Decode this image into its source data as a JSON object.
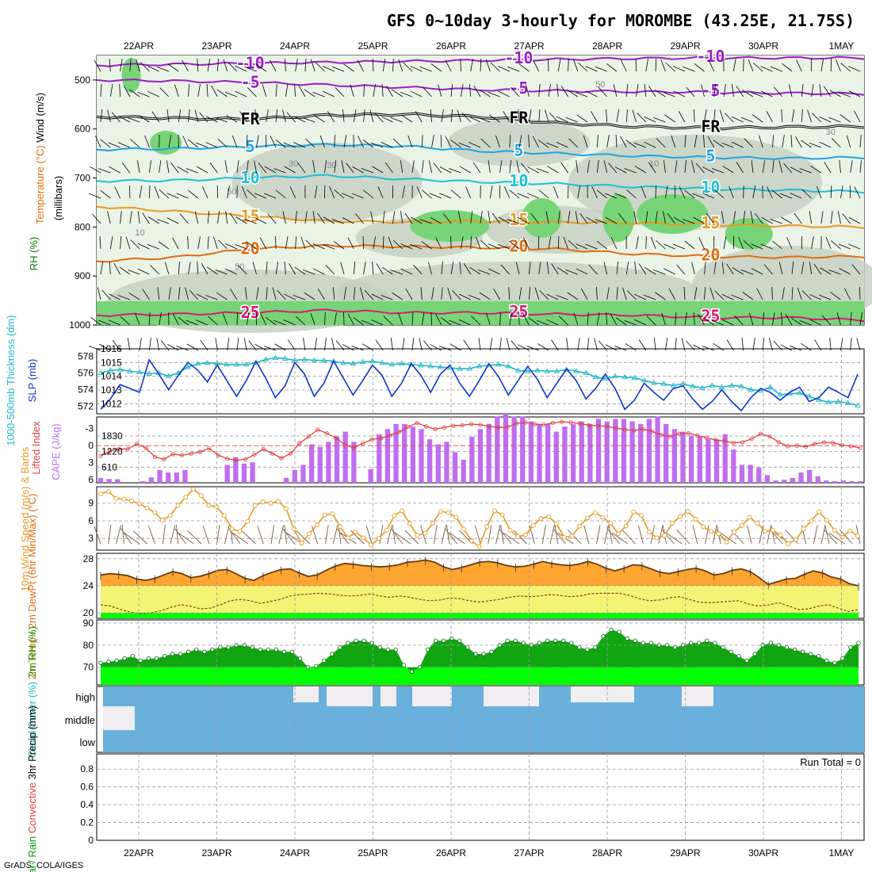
{
  "title": "GFS 0~10day 3-hourly for MOROMBE (43.25E, 21.75S)",
  "credit": "GrADS: COLA/IGES",
  "colors": {
    "rh_light": "#e9f3e6",
    "rh_mid": "#c4cec2",
    "rh_green": "#77d477",
    "temp_purple": "#9b1fc4",
    "temp_blue": "#22a3e0",
    "temp_teal": "#1fbfd0",
    "temp_orange": "#e89a24",
    "temp_dorange": "#e06c10",
    "temp_magenta": "#d81a7a",
    "slp": "#1133cc",
    "thick": "#20b8c8",
    "cape": "#c06ef0",
    "li": "#e04040",
    "wind": "#e89a24",
    "barb": "#7a5a3a",
    "temp2m": "#ffa531",
    "dew2m": "#f4f474",
    "rh2m_dark": "#11a611",
    "rh2m_light": "#00ff00",
    "cloud": "#6ab0dc",
    "cloud_clear": "#f0eef0"
  },
  "chart_data": [
    {
      "panel": "upper-air",
      "type": "heatmap",
      "title": "Temperature (°C)/Wind (m/s)",
      "ylabel_parts": [
        "RH (%)",
        "Temperature (°C)",
        "Wind (m/s)",
        "(millibars)"
      ],
      "x": [
        "22APR",
        "23APR",
        "24APR",
        "25APR",
        "26APR",
        "27APR",
        "28APR",
        "29APR",
        "30APR",
        "1MAY"
      ],
      "y_ticks": [
        500,
        600,
        700,
        800,
        900,
        1000
      ],
      "ylim": [
        1000,
        450
      ],
      "rh_labels": [
        "30",
        "50",
        "10"
      ],
      "isotherms": [
        {
          "label": "-10",
          "pressure": [
            470,
            468,
            466,
            464,
            462,
            460,
            458,
            456,
            455,
            455,
            455
          ]
        },
        {
          "label": "-5",
          "pressure": [
            500,
            502,
            505,
            510,
            515,
            520,
            522,
            524,
            525,
            527,
            528
          ]
        },
        {
          "label": "FR",
          "pressure": [
            575,
            578,
            580,
            572,
            570,
            575,
            588,
            595,
            598,
            596,
            595
          ]
        },
        {
          "label": "5",
          "pressure": [
            642,
            640,
            636,
            632,
            635,
            645,
            650,
            655,
            658,
            660,
            658
          ]
        },
        {
          "label": "10",
          "pressure": [
            706,
            705,
            700,
            695,
            702,
            708,
            712,
            718,
            722,
            725,
            728
          ]
        },
        {
          "label": "15",
          "pressure": [
            758,
            768,
            778,
            788,
            790,
            788,
            790,
            792,
            795,
            798,
            800
          ]
        },
        {
          "label": "20",
          "pressure": [
            870,
            862,
            845,
            838,
            840,
            842,
            845,
            855,
            860,
            862,
            860
          ]
        },
        {
          "label": "25",
          "pressure": [
            980,
            978,
            975,
            970,
            975,
            975,
            978,
            980,
            985,
            985,
            990
          ]
        }
      ]
    },
    {
      "panel": "slp-thickness",
      "type": "line",
      "ylabel_left": "1000-500mb Thickness (dm)",
      "ylabel_right": "SLP (mb)",
      "thickness_ticks": [
        572,
        574,
        576,
        578
      ],
      "slp_ticks": [
        1012,
        1013,
        1014,
        1015,
        1016
      ],
      "series": [
        {
          "name": "SLP (mb)",
          "values": [
            1011.6,
            1012.4,
            1013.5,
            1013.2,
            1012.9,
            1015.4,
            1014.3,
            1013.1,
            1014.2,
            1015.2,
            1014.6,
            1013.7,
            1015.0,
            1013.8,
            1012.6,
            1013.8,
            1015.3,
            1014.0,
            1012.5,
            1013.4,
            1015.2,
            1014.3,
            1012.6,
            1013.6,
            1015.3,
            1014.0,
            1012.7,
            1013.8,
            1015.0,
            1014.2,
            1012.6,
            1013.6,
            1015.1,
            1014.2,
            1012.9,
            1014.3,
            1015.0,
            1013.6,
            1012.6,
            1013.8,
            1015.1,
            1014.1,
            1012.7,
            1013.8,
            1014.9,
            1013.9,
            1012.5,
            1013.6,
            1014.7,
            1013.8,
            1012.4,
            1013.2,
            1014.3,
            1013.2,
            1011.6,
            1012.3,
            1013.6,
            1012.9,
            1012.3,
            1013.2,
            1013.4,
            1012.4,
            1011.6,
            1012.2,
            1013.1,
            1012.2,
            1011.5,
            1012.5,
            1013.2,
            1012.9,
            1012.3,
            1012.9,
            1013.3,
            1012.2,
            1012.5,
            1013.3,
            1012.9,
            1012.5,
            1014.3
          ]
        },
        {
          "name": "1000-500mb Thickness (dm)",
          "values": [
            576.0,
            576.3,
            576.4,
            576.2,
            576.1,
            575.9,
            576.0,
            575.6,
            576.0,
            576.7,
            577.1,
            577.2,
            577.1,
            577.0,
            577.0,
            577.0,
            577.2,
            577.6,
            577.8,
            577.7,
            577.5,
            577.6,
            577.5,
            577.5,
            577.4,
            577.2,
            577.1,
            577.3,
            577.4,
            577.2,
            577.0,
            577.1,
            577.0,
            576.9,
            576.8,
            576.7,
            576.6,
            576.5,
            576.5,
            576.8,
            576.9,
            577.0,
            576.8,
            576.3,
            576.2,
            576.3,
            576.2,
            576.2,
            576.4,
            576.2,
            576.0,
            575.5,
            575.3,
            575.6,
            575.5,
            575.4,
            575.1,
            574.8,
            574.7,
            574.5,
            574.7,
            574.4,
            574.2,
            574.5,
            574.3,
            574.5,
            574.4,
            574.0,
            573.9,
            574.3,
            573.4,
            573.5,
            573.6,
            573.2,
            572.8,
            572.5,
            572.6,
            572.4,
            572.1
          ]
        }
      ]
    },
    {
      "panel": "cape-li",
      "type": "bar",
      "ylabel_left": "Lifted Index",
      "ylabel_right": "CAPE (J/kg)",
      "li_ticks": [
        -3,
        0,
        3,
        6
      ],
      "cape_ticks": [
        610,
        1220,
        1830
      ],
      "series": [
        {
          "name": "CAPE (J/kg)",
          "values": [
            190,
            150,
            140,
            0,
            0,
            60,
            210,
            500,
            400,
            400,
            500,
            0,
            0,
            0,
            0,
            700,
            1000,
            750,
            800,
            0,
            0,
            0,
            190,
            500,
            700,
            1500,
            1400,
            1600,
            1800,
            2000,
            1600,
            0,
            540,
            1900,
            2100,
            2300,
            2300,
            2200,
            2100,
            1700,
            1500,
            1600,
            1200,
            900,
            1800,
            2100,
            2300,
            2600,
            2700,
            2600,
            2600,
            2400,
            2300,
            2300,
            2000,
            2200,
            2300,
            2400,
            2300,
            2500,
            2400,
            2500,
            2500,
            2400,
            2300,
            2500,
            2600,
            2300,
            2100,
            2000,
            1850,
            1800,
            1700,
            1700,
            1900,
            1300,
            700,
            700,
            600,
            300,
            90,
            120,
            190,
            400,
            500,
            250,
            90,
            60,
            90,
            60,
            60
          ]
        },
        {
          "name": "Lifted Index",
          "values": [
            1.8,
            1.0,
            0.6,
            0.6,
            -0.3,
            0.4,
            2.0,
            2.4,
            1.5,
            1.7,
            1.4,
            1.1,
            0.5,
            1.7,
            2.3,
            2.6,
            2.4,
            1.6,
            0.6,
            1.4,
            2.2,
            1.4,
            -0.4,
            -1.6,
            -2.8,
            -2.2,
            -1.4,
            -0.2,
            0.4,
            -0.4,
            -1.1,
            -1.3,
            -1.8,
            -2.4,
            -3.3,
            -4.0,
            -3.4,
            -2.9,
            -3.2,
            -3.5,
            -3.6,
            -3.8,
            -3.7,
            -3.4,
            -3.2,
            -3.3,
            -3.9,
            -4.1,
            -3.8,
            -3.7,
            -4.0,
            -4.2,
            -4.1,
            -3.9,
            -3.6,
            -3.5,
            -3.4,
            -3.1,
            -2.8,
            -2.7,
            -2.9,
            -2.5,
            -1.9,
            -1.6,
            -2.1,
            -2.2,
            -1.8,
            -1.4,
            -1.0,
            -0.8,
            -0.5,
            -0.6,
            -1.2,
            -2.1,
            -1.6,
            -0.6,
            0.1,
            0.0,
            0.2,
            -0.3,
            -0.6,
            -0.5,
            -0.1,
            0.1,
            0.4
          ]
        }
      ]
    },
    {
      "panel": "wind10m",
      "type": "line",
      "ylabel": "10m Wind Speed (m/s) & Barbs",
      "yticks": [
        3,
        6,
        9
      ],
      "series": [
        {
          "name": "10m Wind Speed (m/s)",
          "values": [
            10.6,
            11.0,
            9.8,
            9.7,
            9.4,
            8.9,
            8.2,
            7.4,
            6.1,
            6.9,
            8.6,
            10.0,
            11.4,
            10.3,
            8.6,
            8.4,
            6.9,
            4.6,
            4.2,
            5.9,
            8.6,
            9.2,
            9.0,
            9.3,
            8.1,
            4.6,
            2.2,
            3.8,
            5.3,
            7.0,
            7.2,
            5.0,
            3.1,
            4.1,
            3.1,
            1.9,
            3.0,
            4.4,
            6.9,
            7.7,
            5.5,
            3.5,
            3.9,
            5.6,
            7.6,
            7.4,
            6.6,
            4.6,
            2.6,
            1.6,
            5.0,
            7.7,
            7.0,
            4.4,
            3.3,
            3.6,
            5.2,
            6.4,
            6.7,
            5.5,
            3.2,
            3.4,
            5.1,
            6.5,
            7.4,
            6.6,
            5.6,
            3.8,
            5.1,
            7.5,
            6.9,
            4.1,
            3.1,
            3.5,
            5.6,
            6.7,
            7.6,
            6.3,
            5.0,
            4.2,
            3.8,
            2.4,
            4.1,
            5.2,
            6.6,
            5.6,
            4.2,
            4.4,
            3.6,
            2.1,
            2.8,
            4.6,
            6.0,
            7.5,
            6.1,
            4.4,
            3.2,
            4.3,
            3.4
          ]
        }
      ]
    },
    {
      "panel": "temp2m",
      "type": "area",
      "ylabel": "2m Temp / 2m DewPt (6hr Min/Max) (°C)",
      "yticks": [
        20,
        24,
        28
      ],
      "series": [
        {
          "name": "2m Temp (°C)",
          "values": [
            25.6,
            25.8,
            25.7,
            25.5,
            25.0,
            24.8,
            25.1,
            25.6,
            26.1,
            25.8,
            25.2,
            25.4,
            25.8,
            26.3,
            26.4,
            25.8,
            25.1,
            24.8,
            25.5,
            26.0,
            26.4,
            26.5,
            25.9,
            25.4,
            25.6,
            26.3,
            26.9,
            27.3,
            27.2,
            27.0,
            26.9,
            26.8,
            26.9,
            27.1,
            27.5,
            27.6,
            27.8,
            27.5,
            26.8,
            26.4,
            26.7,
            27.1,
            27.5,
            27.6,
            27.4,
            27.0,
            26.8,
            26.9,
            27.2,
            27.6,
            27.3,
            27.1,
            27.0,
            27.2,
            27.6,
            27.2,
            26.6,
            26.2,
            26.6,
            27.1,
            27.0,
            26.5,
            26.0,
            25.8,
            26.1,
            26.4,
            26.6,
            26.2,
            25.6,
            25.8,
            26.3,
            26.5,
            26.1,
            25.2,
            24.2,
            24.6,
            25.0,
            25.1,
            25.7,
            26.2,
            25.9,
            25.3,
            25.0,
            24.3,
            24.0
          ]
        },
        {
          "name": "2m DewPt (°C)",
          "values": [
            21.2,
            21.0,
            20.5,
            20.1,
            19.9,
            20.0,
            20.3,
            20.8,
            21.2,
            21.0,
            20.6,
            20.7,
            21.2,
            21.8,
            22.0,
            21.8,
            21.4,
            21.7,
            22.0,
            22.5,
            22.7,
            22.8,
            22.9,
            22.8,
            22.6,
            22.5,
            22.6,
            22.8,
            22.5,
            22.3,
            22.5,
            22.3,
            22.0,
            21.8,
            21.9,
            22.2,
            22.1,
            21.8,
            21.6,
            21.8,
            22.0,
            22.3,
            22.5,
            22.4,
            22.5,
            22.7,
            22.6,
            22.4,
            22.5,
            22.8,
            22.9,
            22.9,
            22.9,
            22.6,
            22.1,
            21.8,
            21.9,
            22.2,
            22.4,
            22.0,
            21.6,
            21.5,
            21.6,
            21.7,
            21.8,
            21.3,
            21.0,
            21.2,
            21.5,
            21.0,
            20.5,
            20.6,
            21.0,
            21.2,
            20.7,
            20.2,
            20.5
          ]
        }
      ]
    },
    {
      "panel": "rh2m",
      "type": "area",
      "ylabel": "2m RH (%)",
      "yticks": [
        70,
        80,
        90
      ],
      "series": [
        {
          "name": "2m RH (%)",
          "values": [
            72,
            72.5,
            73,
            74,
            75,
            73,
            74,
            74,
            75,
            76,
            76,
            77,
            78,
            77,
            78,
            79,
            79,
            80,
            80,
            79,
            78,
            78,
            78,
            77,
            77,
            74,
            70,
            70.5,
            73,
            76,
            79,
            81,
            82,
            82,
            81,
            79,
            78,
            78,
            71,
            68,
            70,
            78,
            82,
            82,
            83,
            82,
            79,
            76,
            76,
            77,
            80,
            82,
            82,
            81,
            80,
            81,
            82,
            82,
            82,
            81,
            79,
            78,
            79,
            84,
            87,
            86,
            83,
            82,
            81,
            81,
            80,
            80,
            79,
            80,
            81,
            81,
            82,
            81,
            79,
            77,
            75,
            73,
            76,
            80,
            81,
            80,
            79,
            78,
            77,
            76,
            75,
            73,
            72,
            74,
            79,
            81
          ]
        }
      ]
    },
    {
      "panel": "cloud",
      "type": "area",
      "ylabel": "Cloud Cover (%)",
      "layers": [
        "high",
        "middle",
        "low"
      ]
    },
    {
      "panel": "precip",
      "type": "bar",
      "ylabel_parts": [
        "Total / Rain",
        "Convective",
        "3hr Precip (mm)"
      ],
      "yticks": [
        0,
        0.2,
        0.4,
        0.6,
        0.8
      ],
      "run_total_label": "Run Total = 0",
      "values": []
    }
  ]
}
